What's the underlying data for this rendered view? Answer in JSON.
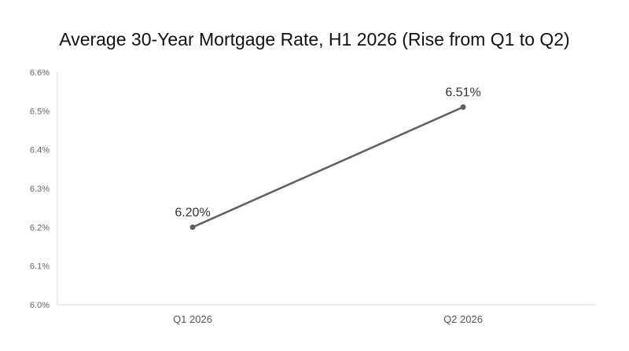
{
  "chart_data": {
    "type": "line",
    "title": "Average 30-Year Mortgage Rate, H1 2026 (Rise from Q1 to Q2)",
    "xlabel": "",
    "ylabel": "",
    "categories": [
      "Q1 2026",
      "Q2 2026"
    ],
    "series": [
      {
        "values": [
          6.2,
          6.51
        ],
        "data_labels": [
          "6.20%",
          "6.51%"
        ],
        "color": "#5f5f5f"
      }
    ],
    "ylim": [
      6.0,
      6.6
    ],
    "yticks": [
      6.0,
      6.1,
      6.2,
      6.3,
      6.4,
      6.5,
      6.6
    ],
    "ytick_labels": [
      "6.0%",
      "6.1%",
      "6.2%",
      "6.3%",
      "6.4%",
      "6.5%",
      "6.6%"
    ],
    "grid": false,
    "legend": "none"
  }
}
